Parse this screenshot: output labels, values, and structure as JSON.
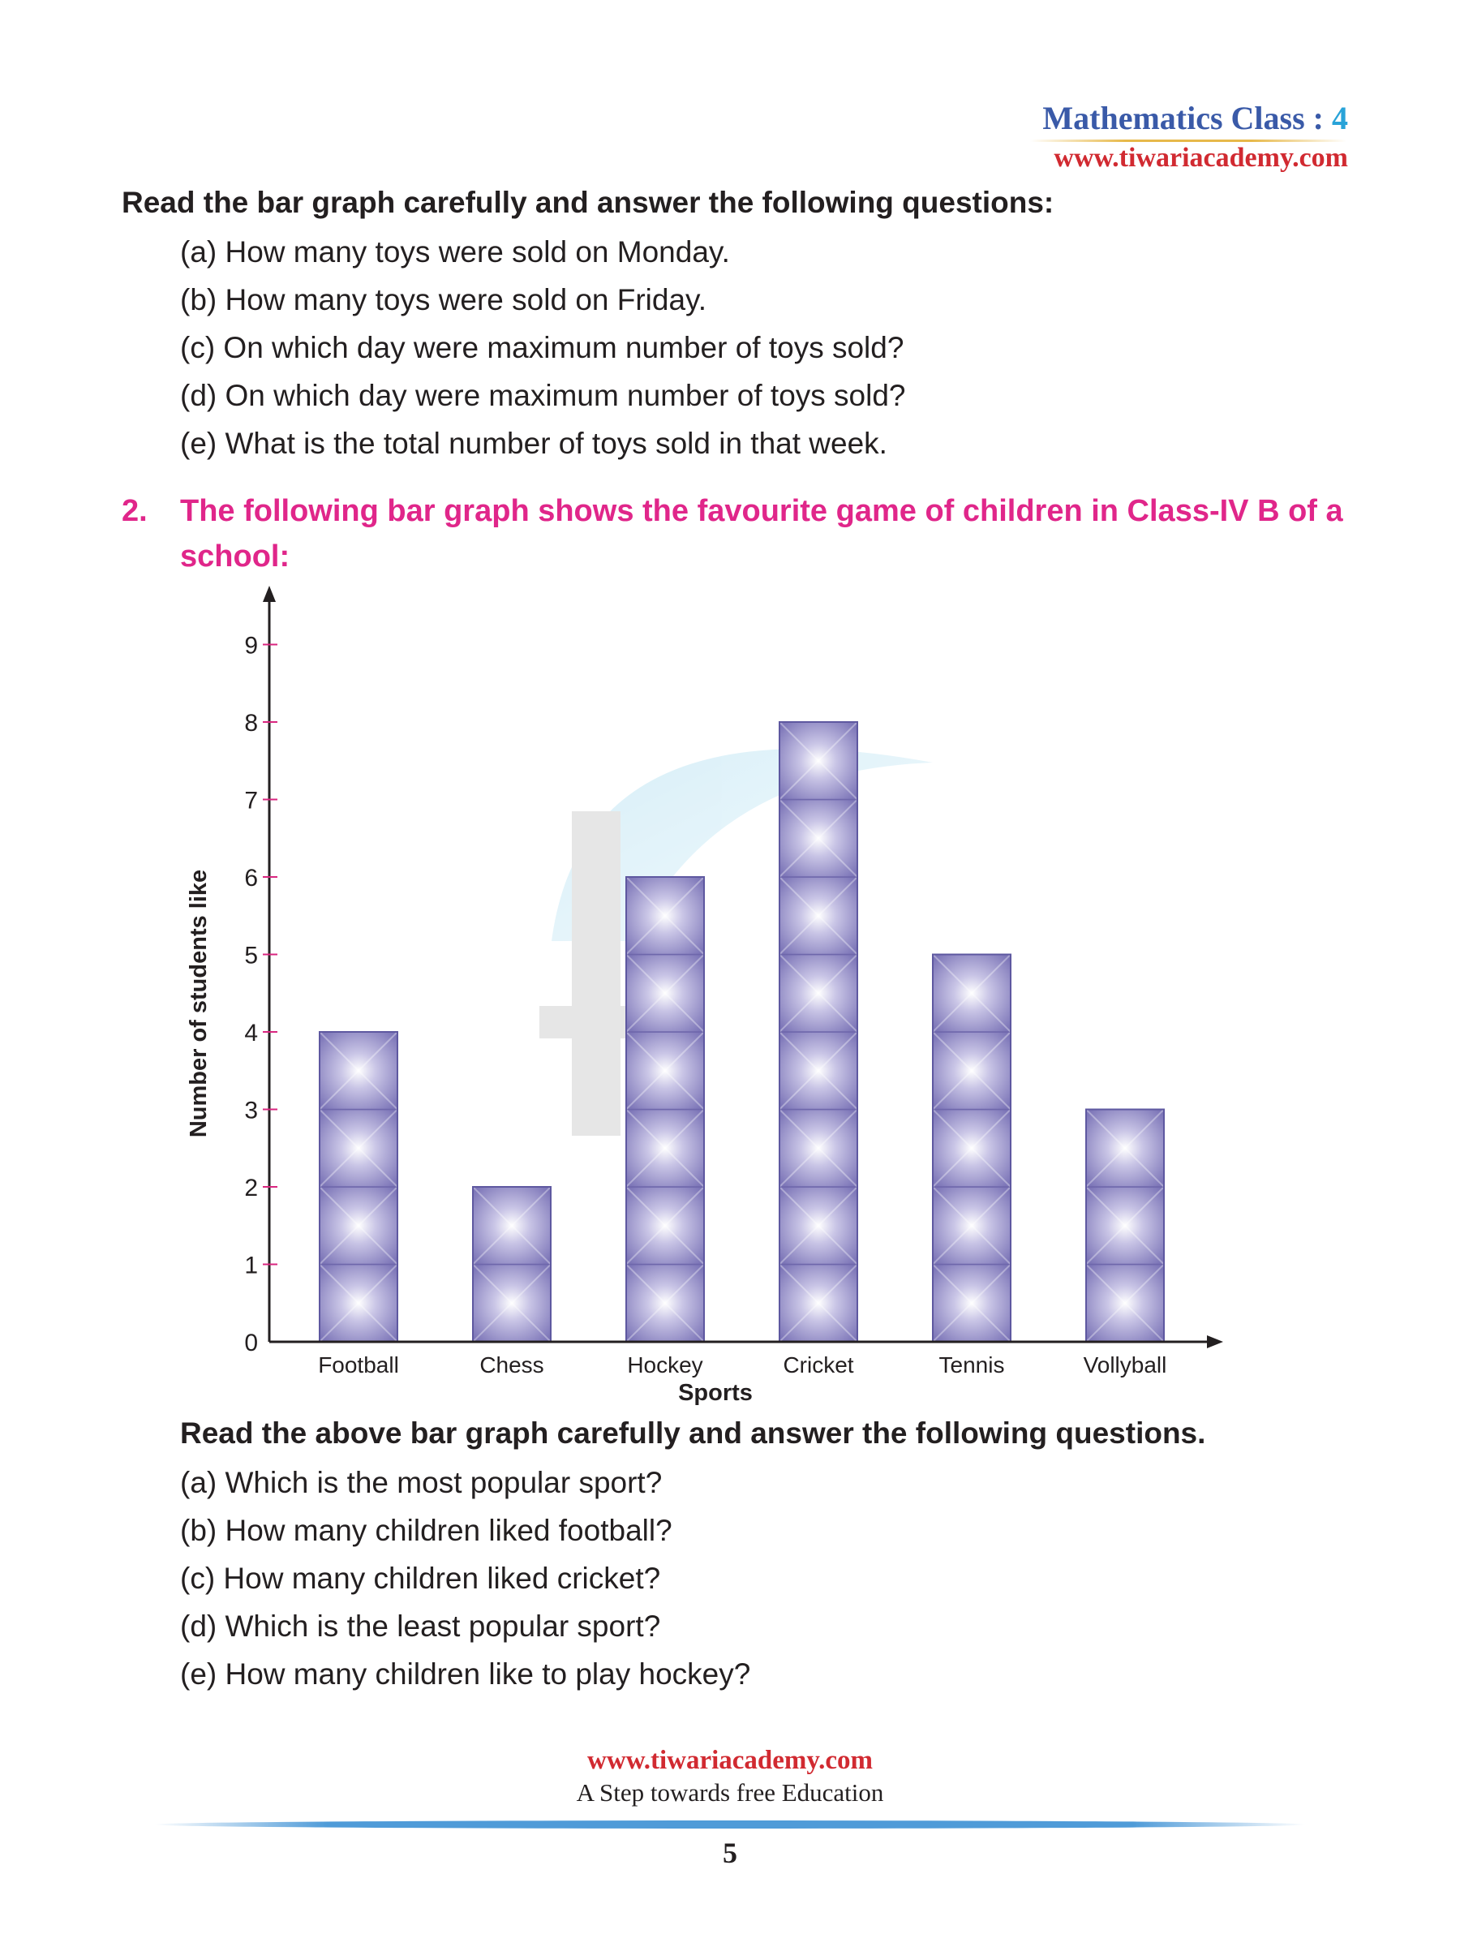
{
  "header": {
    "title": "Mathematics Class : ",
    "class_num": "4",
    "url": "www.tiwariacademy.com"
  },
  "question1": {
    "heading": "Read the bar graph carefully and answer the following questions:",
    "items": [
      "(a) How many toys were sold on Monday.",
      "(b) How many toys were sold on Friday.",
      "(c) On which day were maximum number of toys sold?",
      "(d) On which day were maximum number of toys sold?",
      "(e) What is the total number of toys sold in that week."
    ]
  },
  "question2": {
    "number": "2.",
    "text": "The following bar graph shows the favourite game of children in Class-IV B of a school:",
    "questions_heading": "Read the above bar graph carefully and answer the following questions.",
    "items": [
      "(a) Which is the most popular sport?",
      "(b) How many children liked football?",
      "(c) How many children liked cricket?",
      "(d) Which is the least popular sport?",
      "(e) How many children like to play hockey?"
    ]
  },
  "chart_data": {
    "type": "bar",
    "categories": [
      "Football",
      "Chess",
      "Hockey",
      "Cricket",
      "Tennis",
      "Vollyball"
    ],
    "values": [
      4,
      2,
      6,
      8,
      5,
      3
    ],
    "xlabel": "Sports",
    "ylabel": "Number of students like",
    "ylim": [
      0,
      9
    ],
    "yticks": [
      0,
      1,
      2,
      3,
      4,
      5,
      6,
      7,
      8,
      9
    ],
    "bar_color": "#8e86c4",
    "grid": false
  },
  "footer": {
    "url": "www.tiwariacademy.com",
    "tagline": "A Step towards free Education",
    "page_number": "5"
  }
}
